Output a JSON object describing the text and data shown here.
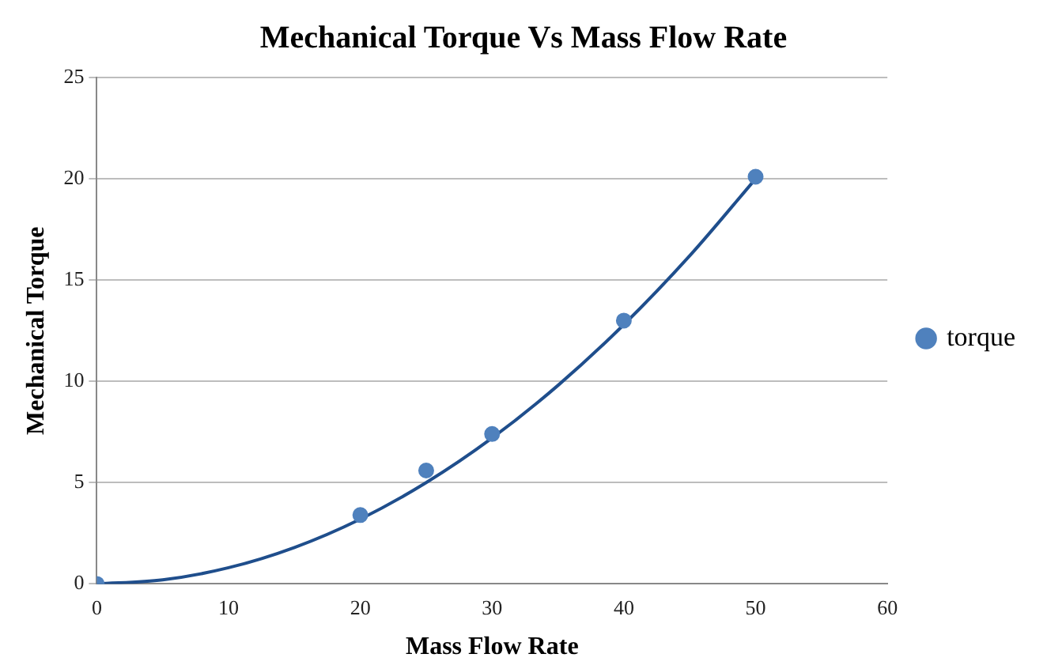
{
  "chart_data": {
    "type": "scatter",
    "title": "Mechanical Torque Vs Mass Flow Rate",
    "xlabel": "Mass Flow Rate",
    "ylabel": "Mechanical Torque",
    "series": [
      {
        "name": "torque",
        "color": "#4f81bd",
        "x": [
          0,
          20,
          25,
          30,
          40,
          50
        ],
        "values": [
          0,
          3.4,
          5.6,
          7.4,
          13,
          20.1
        ],
        "marker": "circle"
      },
      {
        "type": "line",
        "color": "#1f4e8c",
        "x": [
          0,
          5,
          10,
          15,
          20,
          25,
          30,
          35,
          40,
          45,
          50
        ],
        "values": [
          0,
          0.2,
          0.8,
          1.8,
          3.2,
          5,
          7.2,
          9.8,
          12.8,
          16.2,
          20
        ],
        "marker": "none",
        "line_style": "solid"
      }
    ],
    "xlim": [
      0,
      60
    ],
    "xticks": [
      0,
      10,
      20,
      30,
      40,
      50,
      60
    ],
    "ylim": [
      0,
      25
    ],
    "yticks": [
      0,
      5,
      10,
      15,
      20,
      25
    ],
    "grid": "y",
    "legend": "right"
  }
}
